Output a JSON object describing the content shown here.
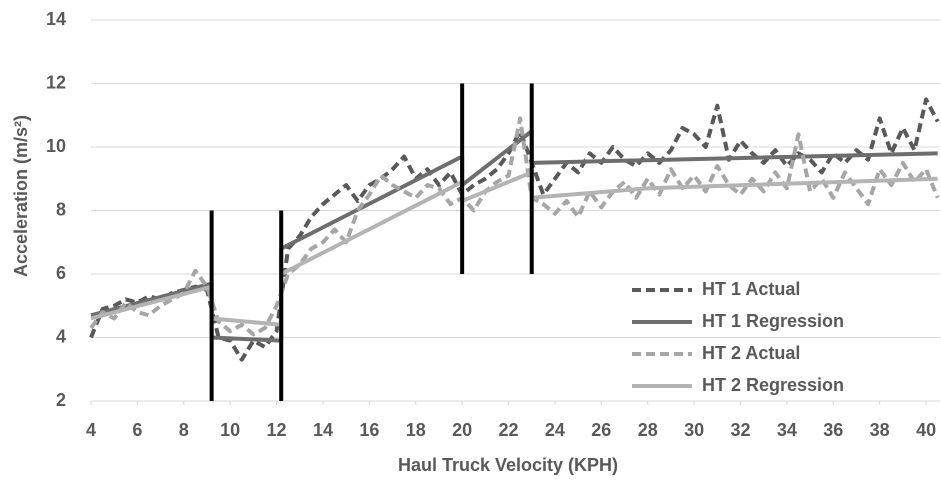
{
  "chart_data": {
    "type": "line",
    "x_label": "Haul Truck Velocity (KPH)",
    "y_label": "Acceleration (m/s²)",
    "x": [
      4,
      4.5,
      5,
      5.5,
      6,
      6.5,
      7,
      7.5,
      8,
      8.5,
      9,
      9.5,
      10,
      10.5,
      11,
      11.5,
      12,
      12.5,
      13,
      13.5,
      14,
      14.5,
      15,
      15.5,
      16,
      16.5,
      17,
      17.5,
      18,
      18.5,
      19,
      19.5,
      20,
      20.5,
      21,
      21.5,
      22,
      22.5,
      23,
      23.5,
      24,
      24.5,
      25,
      25.5,
      26,
      26.5,
      27,
      27.5,
      28,
      28.5,
      29,
      29.5,
      30,
      30.5,
      31,
      31.5,
      32,
      32.5,
      33,
      33.5,
      34,
      34.5,
      35,
      35.5,
      36,
      36.5,
      37,
      37.5,
      38,
      38.5,
      39,
      39.5,
      40,
      40.5
    ],
    "series": [
      {
        "name": "HT 1 Actual",
        "color": "#595959",
        "dashed": true,
        "values": [
          4.0,
          4.9,
          5.0,
          5.2,
          5.1,
          5.3,
          5.2,
          5.4,
          5.5,
          5.6,
          5.5,
          4.0,
          3.9,
          3.3,
          3.9,
          3.7,
          4.2,
          6.8,
          7.2,
          7.8,
          8.2,
          8.5,
          8.8,
          8.3,
          8.8,
          9.0,
          9.3,
          9.7,
          9.0,
          9.3,
          8.8,
          9.2,
          8.5,
          8.8,
          9.0,
          9.3,
          9.8,
          10.5,
          9.5,
          8.5,
          9.0,
          9.5,
          9.2,
          9.8,
          9.5,
          10.0,
          9.6,
          9.4,
          9.8,
          9.5,
          9.9,
          10.6,
          10.4,
          10.0,
          11.3,
          9.6,
          10.2,
          9.8,
          9.5,
          9.9,
          9.4,
          9.8,
          9.6,
          9.2,
          9.8,
          9.5,
          9.9,
          9.6,
          10.9,
          9.8,
          10.6,
          9.9,
          11.5,
          10.8
        ]
      },
      {
        "name": "HT 1 Regression",
        "color": "#6e6e6e",
        "dashed": false,
        "x": [
          4,
          9.2,
          9.2,
          12.2,
          12.2,
          20,
          20,
          23,
          23,
          40.5
        ],
        "values": [
          4.7,
          5.7,
          4.0,
          3.9,
          6.8,
          9.7,
          8.8,
          10.5,
          9.5,
          9.8
        ]
      },
      {
        "name": "HT 2 Actual",
        "color": "#a6a6a6",
        "dashed": true,
        "values": [
          4.3,
          4.8,
          4.6,
          5.1,
          4.8,
          4.7,
          5.0,
          5.2,
          5.4,
          6.1,
          5.6,
          4.5,
          4.2,
          4.4,
          4.1,
          4.3,
          5.0,
          6.0,
          6.3,
          6.8,
          7.0,
          7.4,
          7.0,
          8.0,
          8.5,
          9.1,
          8.8,
          8.6,
          8.4,
          8.8,
          8.7,
          8.2,
          8.4,
          8.0,
          8.6,
          8.9,
          9.1,
          10.9,
          8.4,
          8.2,
          7.9,
          8.3,
          7.8,
          8.6,
          8.1,
          8.6,
          8.9,
          8.4,
          9.0,
          8.5,
          9.3,
          8.7,
          9.1,
          8.6,
          9.4,
          8.8,
          8.5,
          9.0,
          8.6,
          9.2,
          8.7,
          10.4,
          8.6,
          9.0,
          8.4,
          9.2,
          8.7,
          8.2,
          9.3,
          8.8,
          9.5,
          8.9,
          9.3,
          8.4
        ]
      },
      {
        "name": "HT 2 Regression",
        "color": "#b4b4b4",
        "dashed": false,
        "x": [
          4,
          9.2,
          9.2,
          12.2,
          12.2,
          20,
          20,
          23,
          23,
          28,
          40.5
        ],
        "values": [
          4.6,
          5.6,
          4.6,
          4.4,
          6.0,
          8.9,
          8.3,
          9.2,
          8.4,
          8.7,
          9.0
        ]
      }
    ],
    "vertical_lines": [
      {
        "x": 9.2,
        "ylim": [
          2,
          8
        ],
        "color": "#000000"
      },
      {
        "x": 12.2,
        "ylim": [
          2,
          8
        ],
        "color": "#000000"
      },
      {
        "x": 20,
        "ylim": [
          6,
          12
        ],
        "color": "#000000"
      },
      {
        "x": 23,
        "ylim": [
          6,
          12
        ],
        "color": "#000000"
      }
    ],
    "xlim": [
      4,
      40.6
    ],
    "ylim": [
      2,
      14
    ],
    "xticks": [
      4,
      6,
      8,
      10,
      12,
      14,
      16,
      18,
      20,
      22,
      24,
      26,
      28,
      30,
      32,
      34,
      36,
      38,
      40
    ],
    "yticks": [
      2,
      4,
      6,
      8,
      10,
      12,
      14
    ],
    "grid": true,
    "legend": "right"
  }
}
